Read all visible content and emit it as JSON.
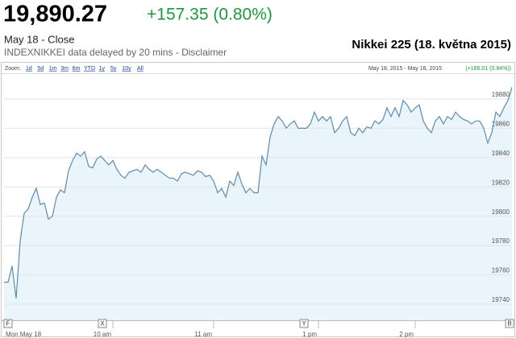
{
  "header": {
    "price": "19,890.27",
    "change": "+157.35 (0.80%)",
    "status": "May 18 - Close",
    "source": "INDEXNIKKEI data delayed by 20 mins - Disclaimer"
  },
  "toolbar": {
    "zoom_label": "Zoom:",
    "ranges": [
      "1d",
      "5d",
      "1m",
      "3m",
      "6m",
      "YTD",
      "1y",
      "5y",
      "10y",
      "All"
    ],
    "range_summary": "May 18, 2015 - May 18, 2015",
    "range_change": "(+166.01 (0.84%))"
  },
  "flags": [
    "F",
    "X",
    "Y",
    "B"
  ],
  "chart_data": {
    "type": "line",
    "title": "Nikkei 225 (18. května 2015)",
    "color": "#5b8cb0",
    "fill": "#eaf4fb",
    "grid": true,
    "values": [
      19755,
      19755,
      19766,
      19744,
      19783,
      19802,
      19805,
      19813,
      19819,
      19808,
      19809,
      19798,
      19800,
      19813,
      19818,
      19816,
      19831,
      19838,
      19843,
      19841,
      19844,
      19834,
      19833,
      19839,
      19841,
      19838,
      19835,
      19838,
      19832,
      19828,
      19826,
      19830,
      19831,
      19832,
      19830,
      19835,
      19832,
      19830,
      19832,
      19830,
      19828,
      19826,
      19826,
      19824,
      19829,
      19830,
      19829,
      19828,
      19831,
      19830,
      19827,
      19828,
      19824,
      19816,
      19819,
      19813,
      19824,
      19821,
      19830,
      19822,
      19816,
      19819,
      19816,
      19816,
      19841,
      19835,
      19854,
      19863,
      19868,
      19865,
      19860,
      19863,
      19865,
      19860,
      19860,
      19860,
      19863,
      19871,
      19865,
      19868,
      19865,
      19868,
      19857,
      19860,
      19865,
      19868,
      19857,
      19855,
      19860,
      19857,
      19861,
      19860,
      19865,
      19863,
      19866,
      19874,
      19868,
      19874,
      19868,
      19879,
      19876,
      19871,
      19874,
      19876,
      19865,
      19860,
      19857,
      19865,
      19868,
      19863,
      19868,
      19866,
      19871,
      19868,
      19866,
      19865,
      19863,
      19865,
      19865,
      19860,
      19850,
      19857,
      19871,
      19868,
      19874,
      19879,
      19888
    ],
    "xlim": [
      0,
      126
    ],
    "xticks": [
      {
        "value": 0,
        "label": "Mon May 18"
      },
      {
        "value": 27,
        "label": "10 am"
      },
      {
        "value": 52,
        "label": "11 am"
      },
      {
        "value": 78,
        "label": "1 pm"
      },
      {
        "value": 102,
        "label": "2 pm"
      }
    ],
    "ylim": [
      19729,
      19897
    ],
    "yticks": [
      19740,
      19760,
      19780,
      19800,
      19820,
      19840,
      19860,
      19880
    ]
  }
}
